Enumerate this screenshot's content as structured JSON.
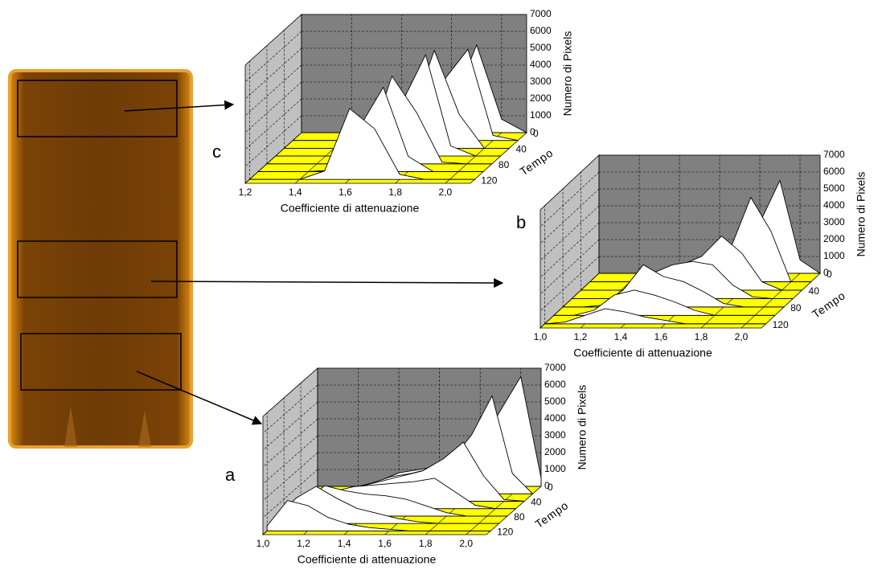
{
  "chart_data": [
    {
      "type": "waterfall3d",
      "label": "c",
      "xlabel": "Coefficiente di attenuazione",
      "ylabel": "Tempo",
      "zlabel": "Numero di Pixels",
      "x": [
        1.2,
        1.3,
        1.4,
        1.5,
        1.6,
        1.7,
        1.8,
        1.9,
        2.0,
        2.1
      ],
      "xlim": [
        1.2,
        2.1
      ],
      "xticks": [
        {
          "value": 1.2,
          "label": "1,2"
        },
        {
          "value": 1.4,
          "label": "1,4"
        },
        {
          "value": 1.6,
          "label": "1,6"
        },
        {
          "value": 1.8,
          "label": "1,8"
        },
        {
          "value": 2.0,
          "label": "2,0"
        }
      ],
      "ylim": [
        0,
        130
      ],
      "yticks": [
        0,
        40,
        80,
        120
      ],
      "zlim": [
        0,
        7000
      ],
      "zticks": [
        0,
        1000,
        2000,
        3000,
        4000,
        5000,
        6000,
        7000
      ],
      "series": [
        {
          "t": 0,
          "values": [
            0,
            0,
            0,
            0,
            0,
            100,
            1500,
            5200,
            800,
            0
          ]
        },
        {
          "t": 20,
          "values": [
            0,
            0,
            0,
            0,
            0,
            300,
            3500,
            5400,
            300,
            0
          ]
        },
        {
          "t": 40,
          "values": [
            0,
            0,
            0,
            0,
            100,
            1500,
            5800,
            2000,
            0,
            0
          ]
        },
        {
          "t": 60,
          "values": [
            0,
            0,
            0,
            0,
            300,
            3000,
            6000,
            600,
            0,
            0
          ]
        },
        {
          "t": 80,
          "values": [
            0,
            0,
            0,
            0,
            800,
            5200,
            3000,
            100,
            0,
            0
          ]
        },
        {
          "t": 100,
          "values": [
            0,
            0,
            0,
            100,
            2500,
            5000,
            900,
            0,
            0,
            0
          ]
        },
        {
          "t": 120,
          "values": [
            0,
            0,
            0,
            500,
            4200,
            3000,
            300,
            0,
            0,
            0
          ]
        }
      ]
    },
    {
      "type": "waterfall3d",
      "label": "b",
      "xlabel": "Coefficiente di attenuazione",
      "ylabel": "Tempo",
      "zlabel": "Numero di Pixels",
      "x": [
        1.0,
        1.1,
        1.2,
        1.3,
        1.4,
        1.5,
        1.6,
        1.7,
        1.8,
        1.9,
        2.0,
        2.1
      ],
      "xlim": [
        1.0,
        2.1
      ],
      "xticks": [
        {
          "value": 1.0,
          "label": "1,0"
        },
        {
          "value": 1.2,
          "label": "1,2"
        },
        {
          "value": 1.4,
          "label": "1,4"
        },
        {
          "value": 1.6,
          "label": "1,6"
        },
        {
          "value": 1.8,
          "label": "1,8"
        },
        {
          "value": 2.0,
          "label": "2,0"
        }
      ],
      "ylim": [
        0,
        130
      ],
      "yticks": [
        0,
        40,
        80,
        120
      ],
      "zlim": [
        0,
        7000
      ],
      "zticks": [
        0,
        1000,
        2000,
        3000,
        4000,
        5000,
        6000,
        7000
      ],
      "series": [
        {
          "t": 0,
          "values": [
            0,
            0,
            0,
            0,
            0,
            200,
            800,
            1500,
            3000,
            5500,
            800,
            0
          ]
        },
        {
          "t": 20,
          "values": [
            0,
            0,
            0,
            0,
            200,
            600,
            1200,
            2000,
            5000,
            3000,
            0,
            0
          ]
        },
        {
          "t": 40,
          "values": [
            0,
            0,
            0,
            200,
            800,
            1500,
            2000,
            3200,
            2200,
            500,
            0,
            0
          ]
        },
        {
          "t": 60,
          "values": [
            0,
            0,
            0,
            500,
            1500,
            2000,
            2200,
            2000,
            800,
            100,
            0,
            0
          ]
        },
        {
          "t": 80,
          "values": [
            0,
            0,
            100,
            1000,
            2500,
            1800,
            1500,
            900,
            200,
            0,
            0,
            0
          ]
        },
        {
          "t": 100,
          "values": [
            0,
            0,
            300,
            1200,
            1500,
            1200,
            800,
            300,
            0,
            0,
            0,
            0
          ]
        },
        {
          "t": 120,
          "values": [
            0,
            100,
            500,
            900,
            700,
            400,
            200,
            0,
            0,
            0,
            0,
            0
          ]
        }
      ]
    },
    {
      "type": "waterfall3d",
      "label": "a",
      "xlabel": "Coefficiente di attenuazione",
      "ylabel": "Tempo",
      "zlabel": "Numero di Pixels",
      "x": [
        1.0,
        1.1,
        1.2,
        1.3,
        1.4,
        1.5,
        1.6,
        1.7,
        1.8,
        1.9,
        2.0,
        2.1
      ],
      "xlim": [
        1.0,
        2.1
      ],
      "xticks": [
        {
          "value": 1.0,
          "label": "1,0"
        },
        {
          "value": 1.2,
          "label": "1,2"
        },
        {
          "value": 1.4,
          "label": "1,4"
        },
        {
          "value": 1.6,
          "label": "1,6"
        },
        {
          "value": 1.8,
          "label": "1,8"
        },
        {
          "value": 2.0,
          "label": "2,0"
        }
      ],
      "ylim": [
        0,
        130
      ],
      "yticks": [
        0,
        40,
        80,
        120
      ],
      "zlim": [
        0,
        7000
      ],
      "zticks": [
        0,
        1000,
        2000,
        3000,
        4000,
        5000,
        6000,
        7000
      ],
      "series": [
        {
          "t": 0,
          "values": [
            0,
            0,
            0,
            300,
            800,
            1000,
            1200,
            1500,
            2500,
            4500,
            6500,
            500
          ]
        },
        {
          "t": 20,
          "values": [
            0,
            0,
            200,
            600,
            1000,
            1200,
            1500,
            2000,
            3500,
            5800,
            1200,
            0
          ]
        },
        {
          "t": 40,
          "values": [
            0,
            100,
            500,
            900,
            1200,
            1500,
            1800,
            2500,
            3500,
            1500,
            100,
            0
          ]
        },
        {
          "t": 60,
          "values": [
            0,
            300,
            1000,
            1300,
            1400,
            1500,
            1600,
            1800,
            1000,
            200,
            0,
            0
          ]
        },
        {
          "t": 80,
          "values": [
            0,
            800,
            1800,
            1500,
            1300,
            1200,
            1000,
            600,
            200,
            0,
            0,
            0
          ]
        },
        {
          "t": 100,
          "values": [
            200,
            1500,
            2200,
            1500,
            900,
            600,
            300,
            100,
            0,
            0,
            0,
            0
          ]
        },
        {
          "t": 120,
          "values": [
            300,
            1800,
            1500,
            800,
            400,
            200,
            100,
            0,
            0,
            0,
            0,
            0
          ]
        }
      ]
    }
  ]
}
